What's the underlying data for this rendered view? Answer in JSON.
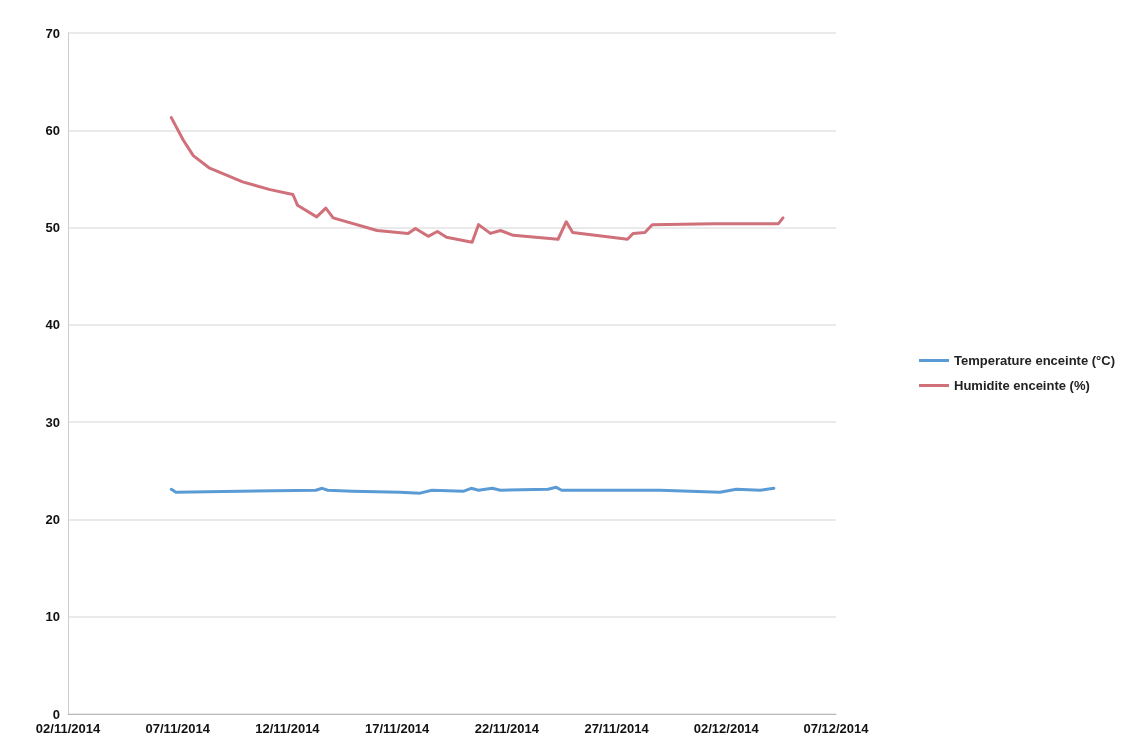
{
  "chart_data": {
    "type": "line",
    "legend": "right",
    "grid": "y",
    "marker": "none",
    "line_style": "solid",
    "xlim": [
      "2014-11-02",
      "2014-12-07"
    ],
    "xticks": [
      {
        "value": "2014-11-02",
        "label": "02/11/2014"
      },
      {
        "value": "2014-11-07",
        "label": "07/11/2014"
      },
      {
        "value": "2014-11-12",
        "label": "12/11/2014"
      },
      {
        "value": "2014-11-17",
        "label": "17/11/2014"
      },
      {
        "value": "2014-11-22",
        "label": "22/11/2014"
      },
      {
        "value": "2014-11-27",
        "label": "27/11/2014"
      },
      {
        "value": "2014-12-02",
        "label": "02/12/2014"
      },
      {
        "value": "2014-12-07",
        "label": "07/12/2014"
      }
    ],
    "ylim": [
      0,
      70
    ],
    "yticks": [
      0,
      10,
      20,
      30,
      40,
      50,
      60,
      70
    ],
    "series": [
      {
        "name": "Temperature enceinte (°C)",
        "color": "#5b9bd5",
        "x": [
          "2014-11-06T17:00",
          "2014-11-06T22:00",
          "2014-11-13T07:00",
          "2014-11-13T14:00",
          "2014-11-13T20:00",
          "2014-11-14T23:00",
          "2014-11-17T03:00",
          "2014-11-18T01:00",
          "2014-11-18T14:00",
          "2014-11-20T01:00",
          "2014-11-20T09:00",
          "2014-11-20T17:00",
          "2014-11-21T08:00",
          "2014-11-21T17:00",
          "2014-11-23T21:00",
          "2014-11-24T06:00",
          "2014-11-24T12:00",
          "2014-11-29T00:00",
          "2014-12-01T17:00",
          "2014-12-02T11:00",
          "2014-12-03T13:00",
          "2014-12-04T04:00"
        ],
        "values": [
          23.1,
          22.8,
          23.0,
          23.2,
          23.0,
          22.9,
          22.8,
          22.7,
          23.0,
          22.9,
          23.2,
          23.0,
          23.2,
          23.0,
          23.1,
          23.3,
          23.0,
          23.0,
          22.8,
          23.1,
          23.0,
          23.2
        ]
      },
      {
        "name": "Humidite enceinte (%)",
        "color": "#d0707a",
        "x": [
          "2014-11-06T17:00",
          "2014-11-07T06:00",
          "2014-11-07T17:00",
          "2014-11-08T11:00",
          "2014-11-09T23:00",
          "2014-11-11T05:00",
          "2014-11-12T06:00",
          "2014-11-12T11:00",
          "2014-11-13T08:00",
          "2014-11-13T18:00",
          "2014-11-14T02:00",
          "2014-11-16T02:00",
          "2014-11-17T12:00",
          "2014-11-17T20:00",
          "2014-11-18T10:00",
          "2014-11-18T20:00",
          "2014-11-19T06:00",
          "2014-11-20T10:00",
          "2014-11-20T17:00",
          "2014-11-21T06:00",
          "2014-11-21T17:00",
          "2014-11-22T07:00",
          "2014-11-24T08:00",
          "2014-11-24T17:00",
          "2014-11-25T00:00",
          "2014-11-27T12:00",
          "2014-11-27T18:00",
          "2014-11-28T07:00",
          "2014-11-28T15:00",
          "2014-12-01T10:00",
          "2014-12-02T23:00",
          "2014-12-04T09:00",
          "2014-12-04T14:00"
        ],
        "values": [
          61.3,
          59.0,
          57.4,
          56.1,
          54.7,
          53.9,
          53.4,
          52.3,
          51.1,
          52.0,
          51.0,
          49.7,
          49.4,
          49.9,
          49.1,
          49.6,
          49.0,
          48.5,
          50.3,
          49.4,
          49.7,
          49.2,
          48.8,
          50.6,
          49.5,
          48.8,
          49.4,
          49.5,
          50.3,
          50.4,
          50.4,
          50.4,
          51.0
        ]
      }
    ]
  }
}
